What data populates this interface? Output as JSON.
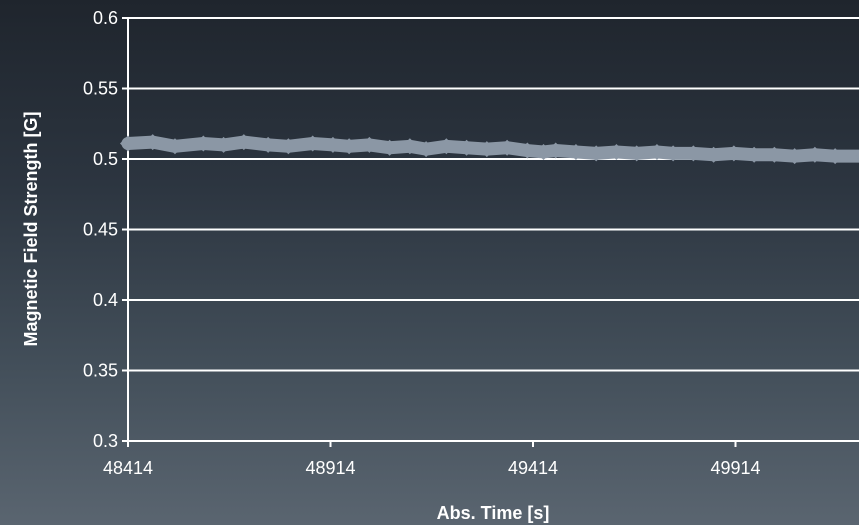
{
  "chart_data": {
    "type": "scatter",
    "title": "",
    "xlabel": "Abs. Time [s]",
    "ylabel": "Magnetic Field Strength [G]",
    "xlim": [
      48414,
      50230
    ],
    "ylim": [
      0.3,
      0.6
    ],
    "x_ticks": [
      "48414",
      "48914",
      "49414",
      "49914"
    ],
    "y_ticks": [
      "0.3",
      "0.35",
      "0.4",
      "0.45",
      "0.5",
      "0.55",
      "0.6"
    ],
    "grid": true,
    "marker": "diamond",
    "colors": {
      "series": "#8b97a5",
      "grid": "#ffffff",
      "text": "#ffffff"
    },
    "series": [
      {
        "x": [
          48414,
          48475,
          48530,
          48600,
          48650,
          48700,
          48760,
          48810,
          48870,
          48920,
          48960,
          49010,
          49060,
          49110,
          49150,
          49200,
          49250,
          49300,
          49350,
          49400,
          49440,
          49470,
          49520,
          49570,
          49620,
          49670,
          49720,
          49760,
          49810,
          49860,
          49910,
          49960,
          50010,
          50060,
          50110,
          50160,
          50230
        ],
        "y": [
          0.511,
          0.512,
          0.509,
          0.511,
          0.51,
          0.512,
          0.51,
          0.509,
          0.511,
          0.51,
          0.509,
          0.51,
          0.508,
          0.509,
          0.507,
          0.509,
          0.508,
          0.507,
          0.508,
          0.506,
          0.505,
          0.506,
          0.505,
          0.504,
          0.505,
          0.504,
          0.505,
          0.504,
          0.504,
          0.503,
          0.504,
          0.503,
          0.503,
          0.502,
          0.503,
          0.502,
          0.502
        ]
      }
    ]
  }
}
